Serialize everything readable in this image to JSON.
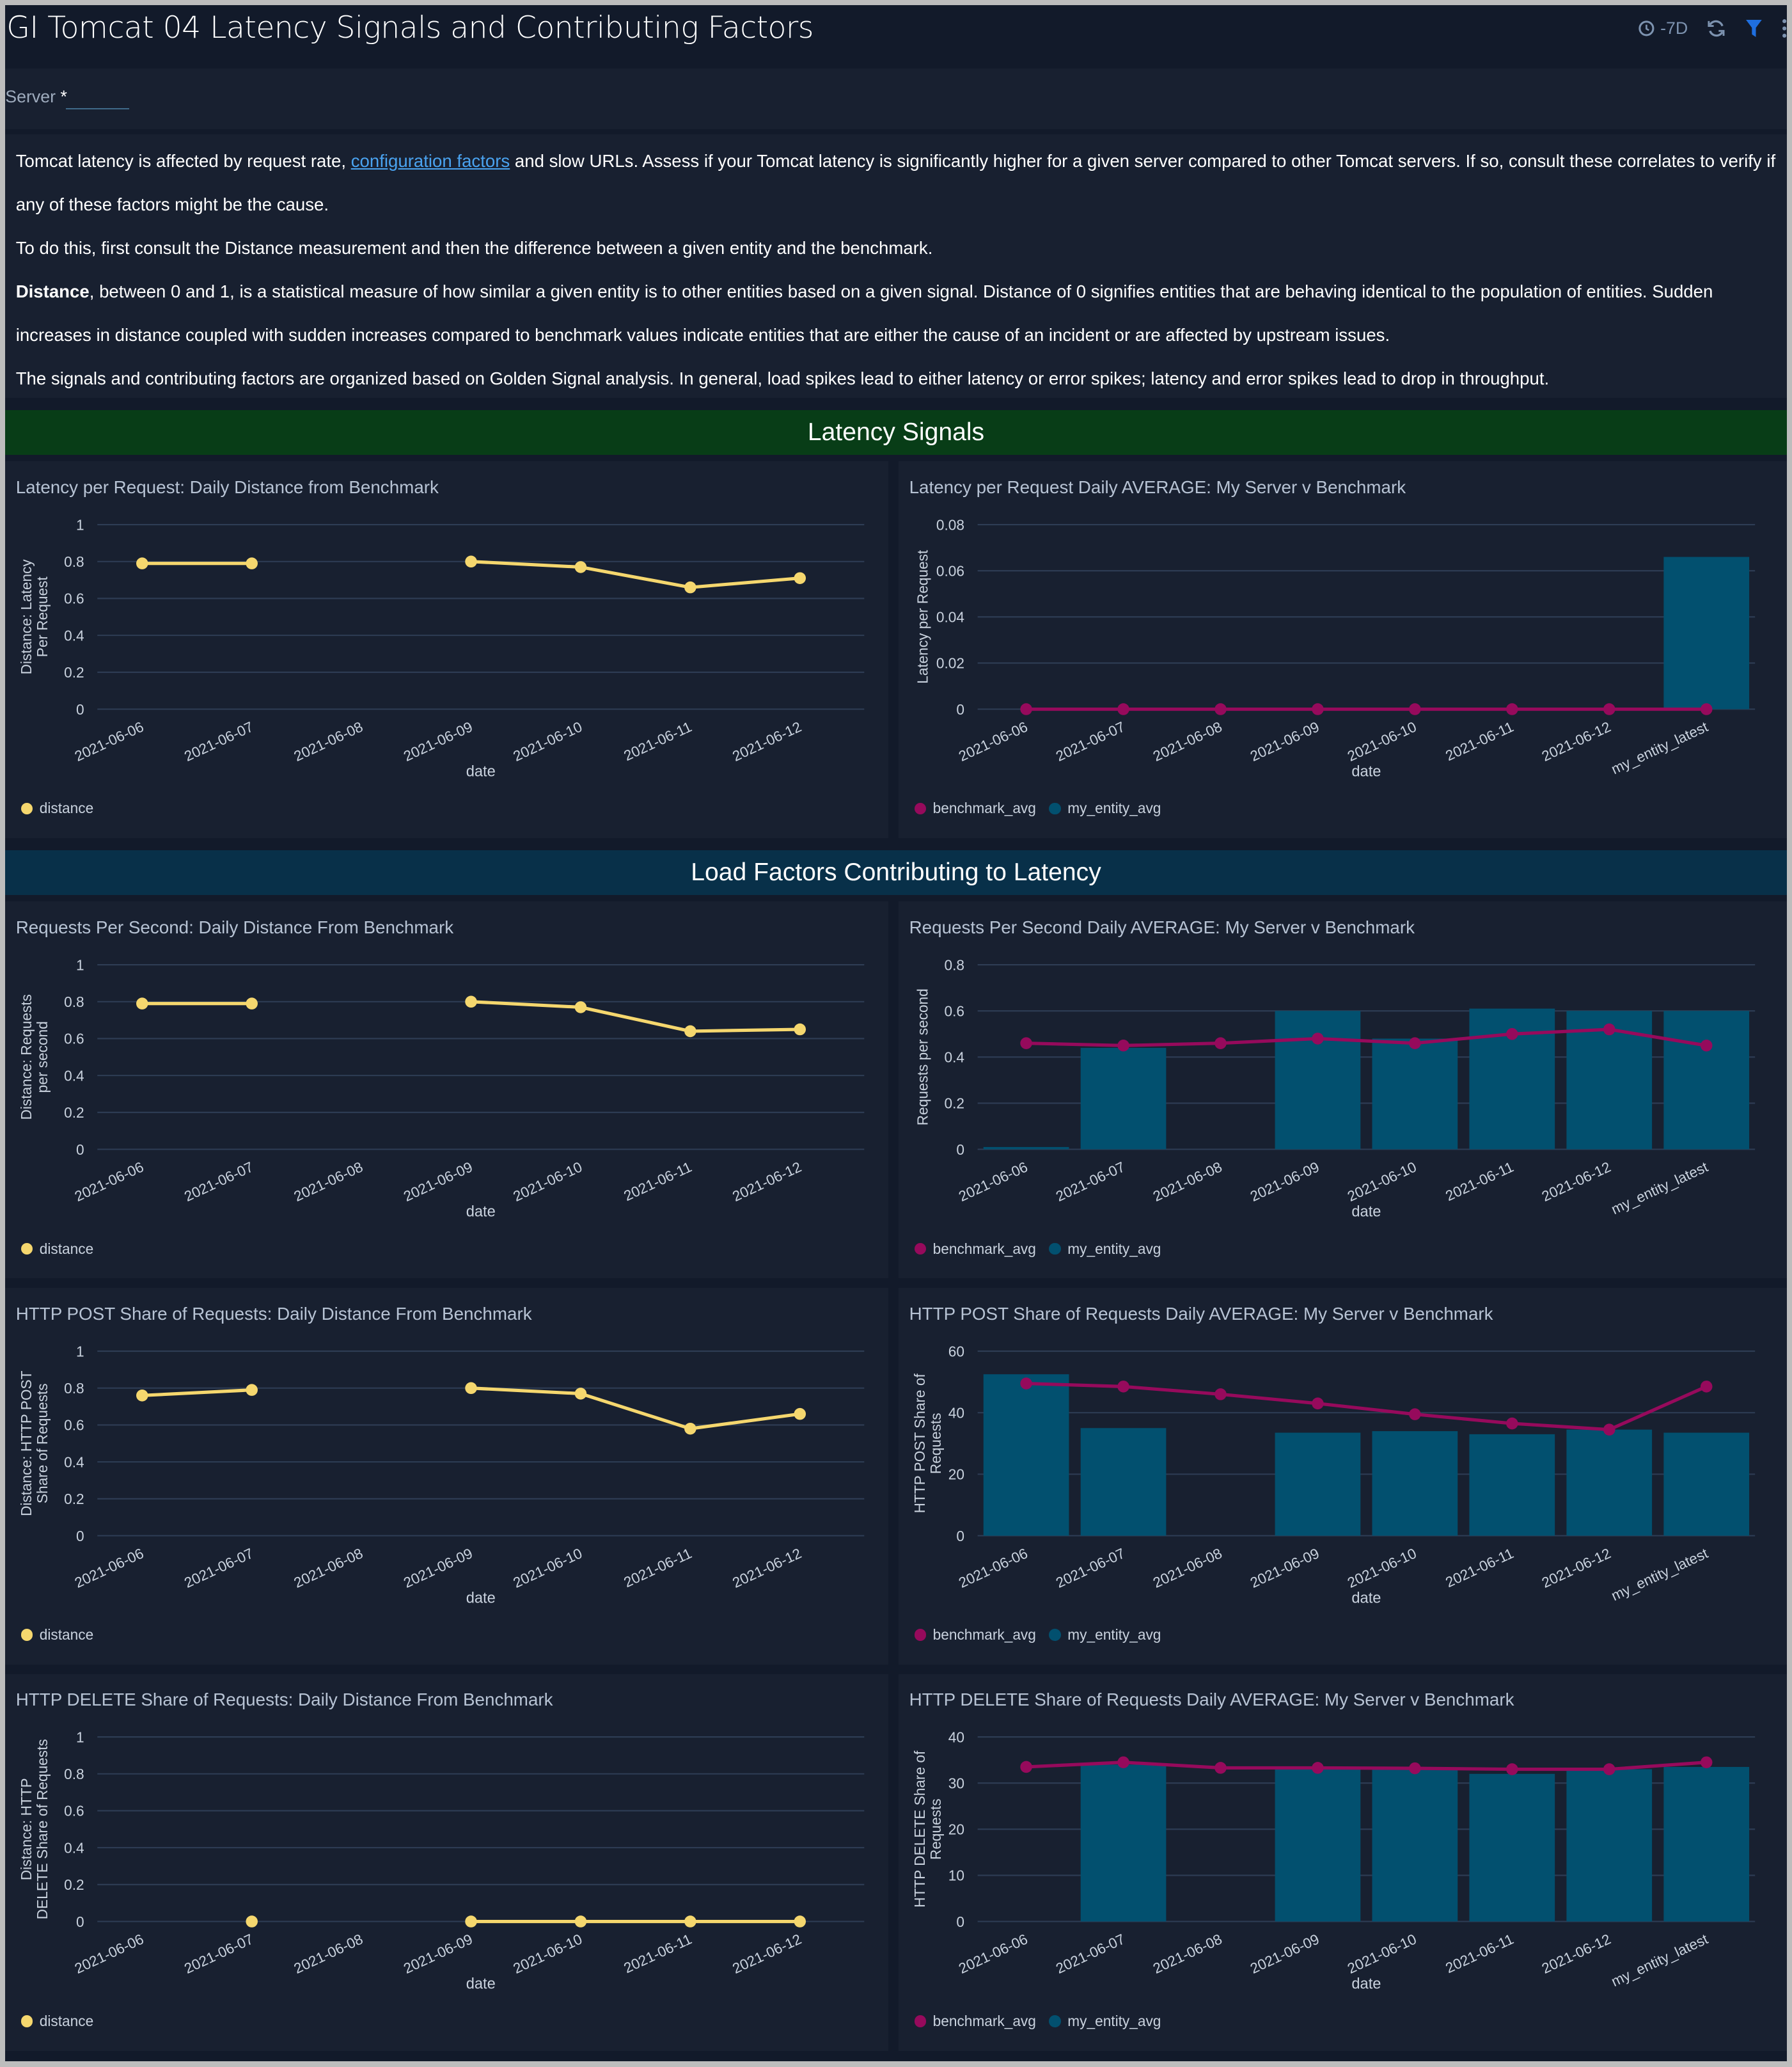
{
  "header": {
    "title": "GI Tomcat 04 Latency Signals and Contributing Factors",
    "time_range": "-7D",
    "icons": [
      "clock-icon",
      "refresh-icon",
      "filter-icon",
      "more-icon"
    ]
  },
  "filters": {
    "server_label": "Server",
    "server_required": "*",
    "server_value": ""
  },
  "intro": {
    "p1_before": "Tomcat latency is affected by request rate, ",
    "p1_link": "configuration factors",
    "p1_after": " and slow URLs. Assess if your Tomcat latency is significantly higher for a given server compared to other Tomcat servers. If so, consult these correlates to verify if any of these factors might be the cause.",
    "p2": "To do this, first consult the Distance measurement and then the difference between a given entity and the benchmark.",
    "p3_bold": "Distance",
    "p3": ", between 0 and 1, is a statistical measure of how similar a given entity is to other entities based on a given signal. Distance of 0 signifies entities that are behaving identical to the population of entities. Sudden increases in distance coupled with sudden increases compared to benchmark values indicate entities that are either the cause of an incident or are affected by upstream issues.",
    "p4": "The signals and contributing factors are organized based on Golden Signal analysis. In general, load spikes lead to either latency or error spikes; latency and error spikes lead to drop in throughput."
  },
  "sections": [
    {
      "title": "Latency Signals",
      "color": "#083d17"
    },
    {
      "title": "Load Factors Contributing to Latency",
      "color": "#083049"
    }
  ],
  "colors": {
    "distance": "#f5d76e",
    "benchmark_avg": "#960a5c",
    "my_entity_avg": "#02506f",
    "grid": "#2e3d55",
    "text": "#c9d2de"
  },
  "chart_data": [
    {
      "type": "line",
      "title": "Latency per Request: Daily Distance from Benchmark",
      "xlabel": "date",
      "ylabel": "Distance: Latency Per Request",
      "ylim": [
        0,
        1
      ],
      "yticks": [
        0,
        0.2,
        0.4,
        0.6,
        0.8,
        1
      ],
      "categories": [
        "2021-06-06",
        "2021-06-07",
        "2021-06-08",
        "2021-06-09",
        "2021-06-10",
        "2021-06-11",
        "2021-06-12"
      ],
      "series": [
        {
          "name": "distance",
          "values": [
            0.79,
            0.79,
            null,
            0.8,
            0.77,
            0.66,
            0.71
          ]
        }
      ],
      "legend": "bottom-left"
    },
    {
      "type": "bar+line",
      "title": "Latency per Request Daily AVERAGE: My Server v Benchmark",
      "xlabel": "date",
      "ylabel": "Latency per Request",
      "ylim": [
        0,
        0.08
      ],
      "yticks": [
        0,
        0.02,
        0.04,
        0.06,
        0.08
      ],
      "categories": [
        "2021-06-06",
        "2021-06-07",
        "2021-06-08",
        "2021-06-09",
        "2021-06-10",
        "2021-06-11",
        "2021-06-12",
        "my_entity_latest"
      ],
      "series": [
        {
          "name": "benchmark_avg",
          "kind": "line",
          "values": [
            0,
            0,
            0,
            0,
            0,
            0,
            0,
            0
          ]
        },
        {
          "name": "my_entity_avg",
          "kind": "bar",
          "values": [
            0,
            0,
            0,
            0,
            0,
            0,
            0,
            0.066
          ]
        }
      ],
      "legend": "bottom-left"
    },
    {
      "type": "line",
      "title": "Requests Per Second: Daily Distance From Benchmark",
      "xlabel": "date",
      "ylabel": "Distance: Requests per second",
      "ylim": [
        0,
        1
      ],
      "yticks": [
        0,
        0.2,
        0.4,
        0.6,
        0.8,
        1
      ],
      "categories": [
        "2021-06-06",
        "2021-06-07",
        "2021-06-08",
        "2021-06-09",
        "2021-06-10",
        "2021-06-11",
        "2021-06-12"
      ],
      "series": [
        {
          "name": "distance",
          "values": [
            0.79,
            0.79,
            null,
            0.8,
            0.77,
            0.64,
            0.65
          ]
        }
      ],
      "legend": "bottom-left"
    },
    {
      "type": "bar+line",
      "title": "Requests Per Second Daily AVERAGE: My Server v Benchmark",
      "xlabel": "date",
      "ylabel": "Requests per second",
      "ylim": [
        0,
        0.8
      ],
      "yticks": [
        0,
        0.2,
        0.4,
        0.6,
        0.8
      ],
      "categories": [
        "2021-06-06",
        "2021-06-07",
        "2021-06-08",
        "2021-06-09",
        "2021-06-10",
        "2021-06-11",
        "2021-06-12",
        "my_entity_latest"
      ],
      "series": [
        {
          "name": "benchmark_avg",
          "kind": "line",
          "values": [
            0.46,
            0.45,
            0.46,
            0.48,
            0.46,
            0.5,
            0.52,
            0.45
          ]
        },
        {
          "name": "my_entity_avg",
          "kind": "bar",
          "values": [
            0.01,
            0.44,
            0,
            0.6,
            0.48,
            0.61,
            0.6,
            0.6
          ]
        }
      ],
      "legend": "bottom-left"
    },
    {
      "type": "line",
      "title": "HTTP POST Share of Requests: Daily Distance From Benchmark",
      "xlabel": "date",
      "ylabel": "Distance: HTTP POST Share of Requests",
      "ylim": [
        0,
        1
      ],
      "yticks": [
        0,
        0.2,
        0.4,
        0.6,
        0.8,
        1
      ],
      "categories": [
        "2021-06-06",
        "2021-06-07",
        "2021-06-08",
        "2021-06-09",
        "2021-06-10",
        "2021-06-11",
        "2021-06-12"
      ],
      "series": [
        {
          "name": "distance",
          "values": [
            0.76,
            0.79,
            null,
            0.8,
            0.77,
            0.58,
            0.66
          ]
        }
      ],
      "legend": "bottom-left"
    },
    {
      "type": "bar+line",
      "title": "HTTP POST Share of Requests Daily AVERAGE: My Server v Benchmark",
      "xlabel": "date",
      "ylabel": "HTTP POST Share of Requests",
      "ylim": [
        0,
        60
      ],
      "yticks": [
        0,
        20,
        40,
        60
      ],
      "categories": [
        "2021-06-06",
        "2021-06-07",
        "2021-06-08",
        "2021-06-09",
        "2021-06-10",
        "2021-06-11",
        "2021-06-12",
        "my_entity_latest"
      ],
      "series": [
        {
          "name": "benchmark_avg",
          "kind": "line",
          "values": [
            49.5,
            48.5,
            46,
            43,
            39.5,
            36.5,
            34.5,
            48.5
          ]
        },
        {
          "name": "my_entity_avg",
          "kind": "bar",
          "values": [
            52.5,
            35,
            0,
            33.5,
            34,
            33,
            34.5,
            33.5
          ]
        }
      ],
      "legend": "bottom-left"
    },
    {
      "type": "line",
      "title": "HTTP DELETE Share of Requests: Daily Distance From Benchmark",
      "xlabel": "date",
      "ylabel": "Distance: HTTP DELETE Share of Requests",
      "ylim": [
        0,
        1
      ],
      "yticks": [
        0,
        0.2,
        0.4,
        0.6,
        0.8,
        1
      ],
      "categories": [
        "2021-06-06",
        "2021-06-07",
        "2021-06-08",
        "2021-06-09",
        "2021-06-10",
        "2021-06-11",
        "2021-06-12"
      ],
      "series": [
        {
          "name": "distance",
          "values": [
            null,
            0,
            null,
            0,
            0,
            0,
            0
          ]
        }
      ],
      "legend": "bottom-left"
    },
    {
      "type": "bar+line",
      "title": "HTTP DELETE Share of Requests Daily AVERAGE: My Server v Benchmark",
      "xlabel": "date",
      "ylabel": "HTTP DELETE Share of Requests",
      "ylim": [
        0,
        40
      ],
      "yticks": [
        0,
        10,
        20,
        30,
        40
      ],
      "categories": [
        "2021-06-06",
        "2021-06-07",
        "2021-06-08",
        "2021-06-09",
        "2021-06-10",
        "2021-06-11",
        "2021-06-12",
        "my_entity_latest"
      ],
      "series": [
        {
          "name": "benchmark_avg",
          "kind": "line",
          "values": [
            33.5,
            34.5,
            33.3,
            33.3,
            33.2,
            33,
            33,
            34.5
          ]
        },
        {
          "name": "my_entity_avg",
          "kind": "bar",
          "values": [
            0,
            34,
            0,
            33,
            33,
            32,
            33,
            33.5
          ]
        }
      ],
      "legend": "bottom-left"
    }
  ]
}
